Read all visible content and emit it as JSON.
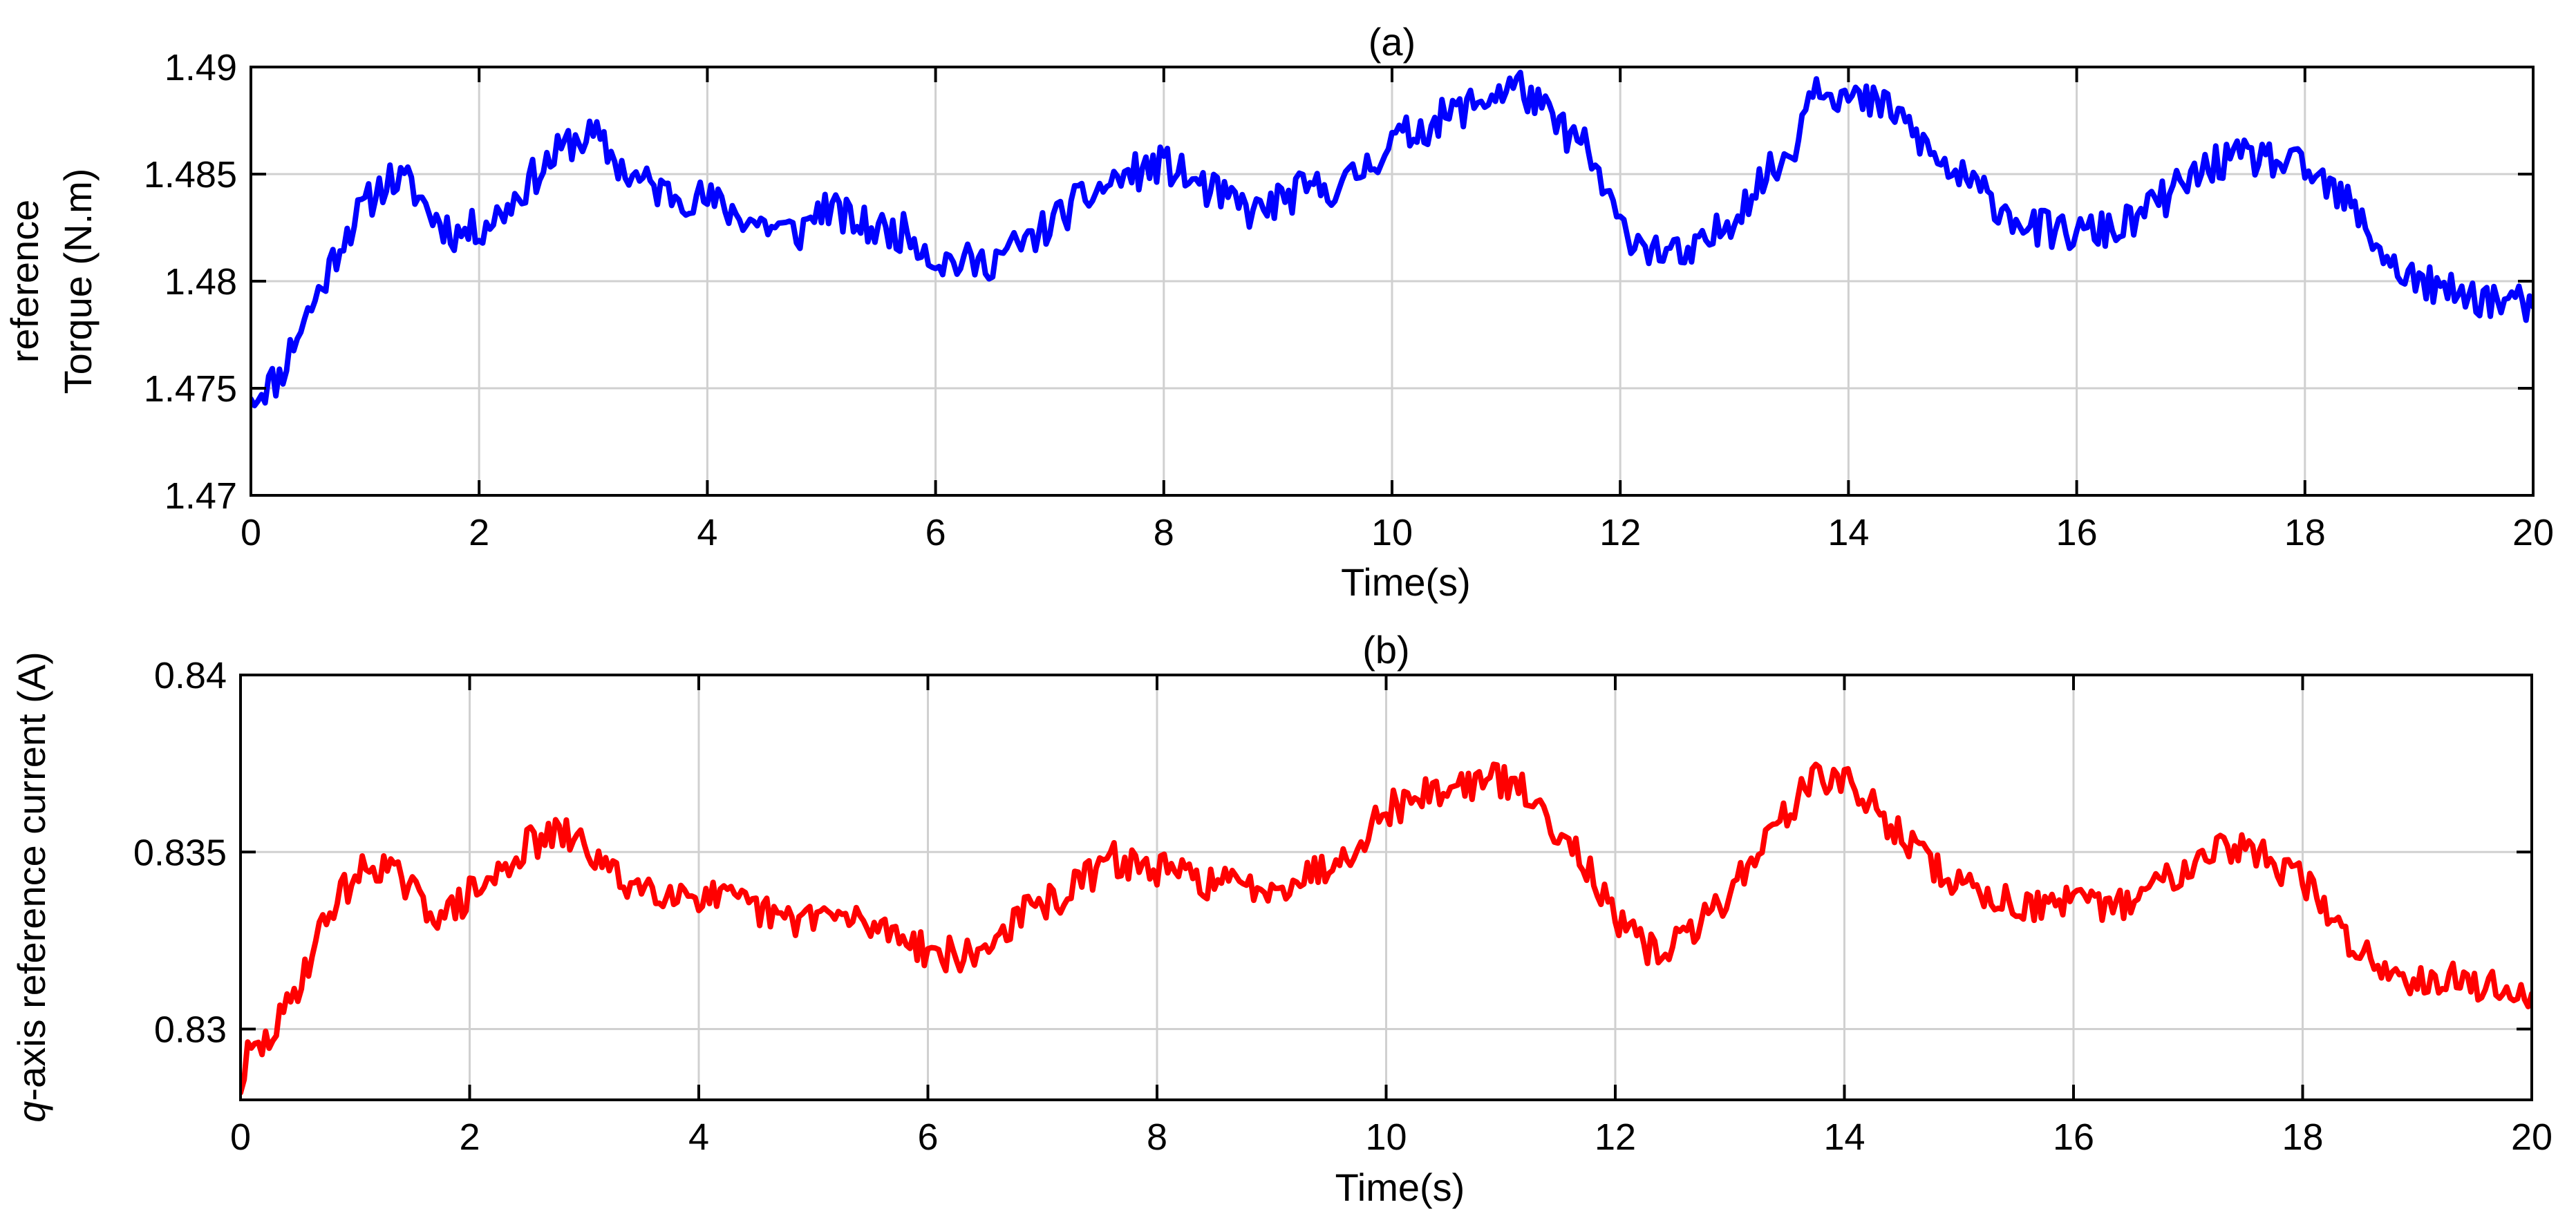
{
  "chart_data": [
    {
      "type": "line",
      "title": "(a)",
      "xlabel": "Time(s)",
      "ylabel_lines": [
        "reference",
        "Torque (N.m)"
      ],
      "xlim": [
        0,
        20
      ],
      "ylim": [
        1.47,
        1.49
      ],
      "xticks": [
        0,
        2,
        4,
        6,
        8,
        10,
        12,
        14,
        16,
        18,
        20
      ],
      "yticks": [
        1.47,
        1.475,
        1.48,
        1.485,
        1.49
      ],
      "ytick_labels": [
        "1.47",
        "1.475",
        "1.48",
        "1.485",
        "1.49"
      ],
      "grid": true,
      "color": "#0000ff",
      "noise": 0.0009,
      "seed": 11,
      "series": [
        {
          "x": [
            0,
            0.1,
            0.25,
            0.4,
            0.6,
            0.8,
            1.0,
            1.2,
            1.4,
            1.6,
            1.8,
            2.0,
            2.2,
            2.5,
            2.8,
            3.0,
            3.3,
            3.6,
            4.0,
            4.4,
            4.8,
            5.0,
            5.4,
            5.8,
            6.0,
            6.4,
            6.8,
            7.2,
            7.6,
            8.0,
            8.4,
            8.8,
            9.2,
            9.6,
            10.0,
            10.4,
            10.8,
            11.1,
            11.4,
            11.7,
            12.0,
            12.3,
            12.6,
            12.9,
            13.2,
            13.5,
            13.7,
            14.0,
            14.4,
            14.8,
            15.2,
            15.6,
            16.0,
            16.4,
            16.8,
            17.2,
            17.6,
            18.0,
            18.4,
            18.8,
            19.2,
            19.6,
            20.0
          ],
          "y": [
            1.4745,
            1.475,
            1.4755,
            1.4775,
            1.4795,
            1.482,
            1.4835,
            1.4848,
            1.4845,
            1.483,
            1.4822,
            1.4825,
            1.4832,
            1.485,
            1.4865,
            1.4868,
            1.485,
            1.4842,
            1.4838,
            1.4828,
            1.4822,
            1.4835,
            1.4825,
            1.4822,
            1.481,
            1.4808,
            1.4818,
            1.4835,
            1.4848,
            1.4855,
            1.4842,
            1.4832,
            1.4842,
            1.4845,
            1.4865,
            1.4875,
            1.4885,
            1.4892,
            1.4875,
            1.4862,
            1.4825,
            1.4815,
            1.481,
            1.4825,
            1.4845,
            1.486,
            1.4895,
            1.4885,
            1.488,
            1.4855,
            1.484,
            1.4825,
            1.4822,
            1.4825,
            1.484,
            1.4855,
            1.4858,
            1.4852,
            1.4835,
            1.4805,
            1.4795,
            1.4792,
            1.4788
          ]
        }
      ]
    },
    {
      "type": "line",
      "title": "(b)",
      "xlabel": "Time(s)",
      "ylabel_var": "q",
      "ylabel_rest": "-axis reference current (A)",
      "xlim": [
        0,
        20
      ],
      "ylim": [
        0.828,
        0.84
      ],
      "xticks": [
        0,
        2,
        4,
        6,
        8,
        10,
        12,
        14,
        16,
        18,
        20
      ],
      "yticks": [
        0.83,
        0.835,
        0.84
      ],
      "ytick_labels": [
        "0.83",
        "0.835",
        "0.84"
      ],
      "grid": true,
      "color": "#ff0000",
      "noise": 0.0005,
      "seed": 29,
      "series": [
        {
          "x": [
            0,
            0.05,
            0.2,
            0.4,
            0.6,
            0.8,
            1.0,
            1.2,
            1.4,
            1.6,
            1.8,
            2.0,
            2.2,
            2.5,
            2.8,
            3.0,
            3.3,
            3.6,
            4.0,
            4.4,
            4.8,
            5.0,
            5.4,
            5.8,
            6.0,
            6.4,
            6.8,
            7.2,
            7.6,
            8.0,
            8.4,
            8.8,
            9.2,
            9.6,
            10.0,
            10.4,
            10.8,
            11.1,
            11.4,
            11.7,
            12.0,
            12.3,
            12.6,
            12.9,
            13.2,
            13.5,
            13.8,
            14.0,
            14.4,
            14.8,
            15.2,
            15.6,
            16.0,
            16.4,
            16.8,
            17.2,
            17.6,
            18.0,
            18.4,
            18.8,
            19.2,
            19.6,
            20.0
          ],
          "y": [
            0.8282,
            0.8292,
            0.8295,
            0.8305,
            0.832,
            0.8335,
            0.8343,
            0.8347,
            0.8342,
            0.8335,
            0.8332,
            0.8338,
            0.8342,
            0.8352,
            0.8355,
            0.8352,
            0.8342,
            0.834,
            0.8338,
            0.8335,
            0.833,
            0.8333,
            0.833,
            0.8327,
            0.8322,
            0.832,
            0.8332,
            0.8338,
            0.8348,
            0.8345,
            0.8342,
            0.834,
            0.8342,
            0.8348,
            0.8362,
            0.8367,
            0.837,
            0.837,
            0.836,
            0.835,
            0.833,
            0.8322,
            0.8325,
            0.8335,
            0.8348,
            0.8362,
            0.8372,
            0.837,
            0.8358,
            0.8345,
            0.8338,
            0.8335,
            0.8335,
            0.8335,
            0.8342,
            0.8352,
            0.835,
            0.8342,
            0.8325,
            0.8315,
            0.8315,
            0.8312,
            0.831
          ]
        }
      ]
    }
  ]
}
